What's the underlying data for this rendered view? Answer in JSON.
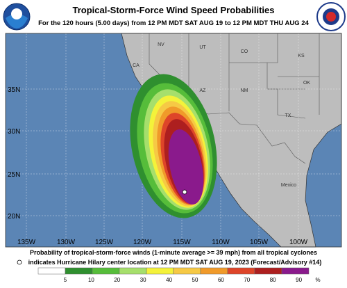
{
  "header": {
    "title": "Tropical-Storm-Force Wind Speed Probabilities",
    "subtitle": "For the 120 hours (5.00 days) from 12 PM MDT SAT AUG 19 to 12 PM MDT THU AUG 24"
  },
  "map": {
    "region_labels": [
      "NV",
      "UT",
      "CO",
      "KS",
      "CA",
      "AZ",
      "NM",
      "OK",
      "TX",
      "Mexico"
    ],
    "lat_labels": [
      "35N",
      "30N",
      "25N",
      "20N"
    ],
    "lon_labels": [
      "135W",
      "130W",
      "125W",
      "120W",
      "115W",
      "110W",
      "105W",
      "100W"
    ]
  },
  "footer": {
    "line1": "Probability of tropical-storm-force winds (1-minute average >= 39 mph) from all tropical cyclones",
    "line2": "indicates Hurricane Hilary center location at 12 PM MDT SAT AUG 19, 2023 (Forecast/Advisory #14)"
  },
  "legend": {
    "labels": [
      5,
      10,
      20,
      30,
      40,
      50,
      60,
      70,
      80,
      90
    ],
    "unit": "%",
    "colors": [
      "#ffffff",
      "#2f8f2f",
      "#56bd3a",
      "#a6df6c",
      "#f4f23a",
      "#f6c945",
      "#f09a2a",
      "#de4529",
      "#ad1f1f",
      "#8a1a8c"
    ]
  }
}
